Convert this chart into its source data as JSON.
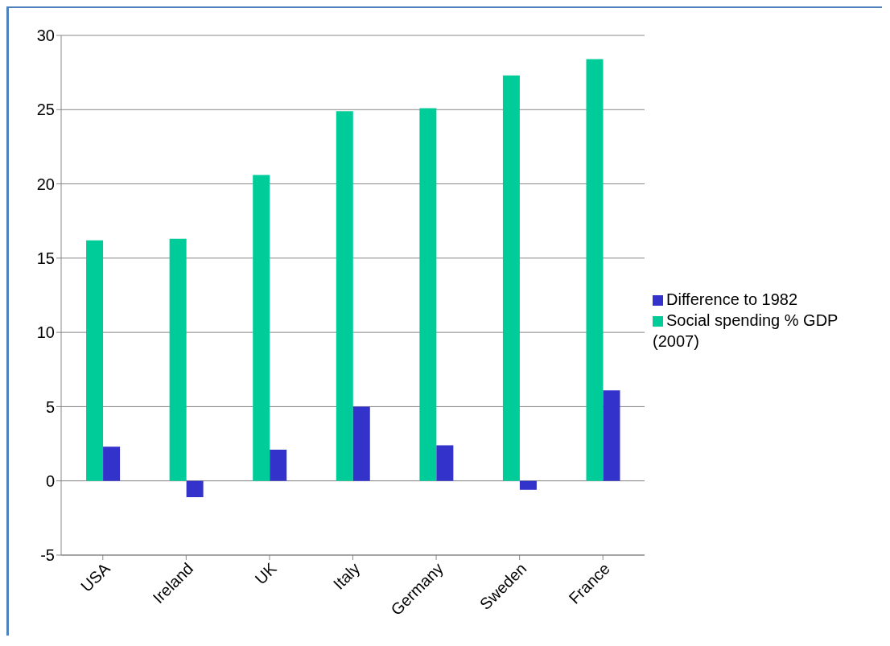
{
  "chart_data": {
    "type": "bar",
    "categories": [
      "USA",
      "Ireland",
      "UK",
      "Italy",
      "Germany",
      "Sweden",
      "France"
    ],
    "series": [
      {
        "name": "Social spending % GDP (2007)",
        "color": "#00cc99",
        "values": [
          16.2,
          16.3,
          20.6,
          24.9,
          25.1,
          27.3,
          28.4
        ]
      },
      {
        "name": "Difference to 1982",
        "color": "#3333cc",
        "values": [
          2.3,
          -1.1,
          2.1,
          5.0,
          2.4,
          -0.6,
          6.1
        ]
      }
    ],
    "ylim": [
      -5,
      30
    ],
    "yticks": [
      -5,
      0,
      5,
      10,
      15,
      20,
      25,
      30
    ],
    "grid": "y",
    "legend": "right"
  }
}
